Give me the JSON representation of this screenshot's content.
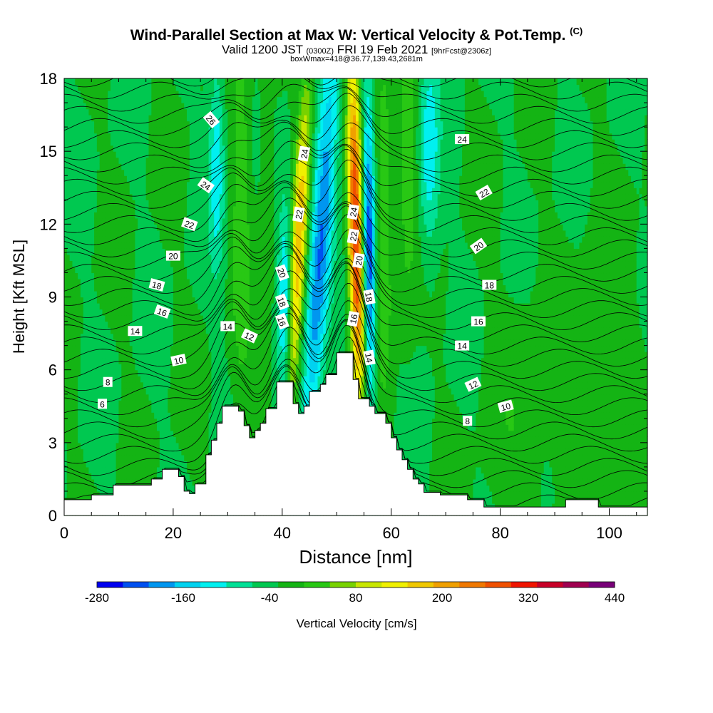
{
  "header": {
    "title": "Wind-Parallel Section at Max W: Vertical Velocity & Pot.Temp.",
    "title_mark": "(C)",
    "valid_pre": "Valid 1200 JST",
    "valid_utc": "(0300Z)",
    "valid_post": "FRI 19 Feb 2021",
    "fcst": "[9hrFcst@2306z]",
    "box": "boxWmax=418@36.77,139.43,2681m"
  },
  "chart_data": {
    "type": "heatmap",
    "xlabel": "Distance [nm]",
    "ylabel": "Height [Kft MSL]",
    "xlim": [
      0,
      107
    ],
    "ylim": [
      0,
      18
    ],
    "x_ticks": [
      0,
      20,
      40,
      60,
      80,
      100
    ],
    "y_ticks": [
      0,
      3,
      6,
      9,
      12,
      15,
      18
    ],
    "colorbar": {
      "label": "Vertical Velocity [cm/s]",
      "tick_labels": [
        "-280",
        "-160",
        "-40",
        "80",
        "200",
        "320",
        "440"
      ],
      "tick_values": [
        -280,
        -160,
        -40,
        80,
        200,
        320,
        440
      ],
      "min": -280,
      "max": 440,
      "step": 40,
      "colors": [
        "#0000f0",
        "#0050f0",
        "#0096f0",
        "#00d2f0",
        "#00f0f0",
        "#00e096",
        "#00c850",
        "#14b414",
        "#28c814",
        "#78d200",
        "#c8e600",
        "#f0f000",
        "#f0c800",
        "#f0a000",
        "#f07800",
        "#f05000",
        "#f01400",
        "#c80028",
        "#a00050",
        "#780078"
      ]
    },
    "terrain_kft": [
      [
        0,
        0.65
      ],
      [
        5,
        0.65
      ],
      [
        5,
        0.85
      ],
      [
        9,
        0.85
      ],
      [
        9,
        1.25
      ],
      [
        16,
        1.25
      ],
      [
        16,
        1.5
      ],
      [
        18,
        1.5
      ],
      [
        18,
        1.9
      ],
      [
        21,
        1.9
      ],
      [
        21,
        1.6
      ],
      [
        22,
        1.6
      ],
      [
        22,
        1.0
      ],
      [
        23,
        1.0
      ],
      [
        23,
        0.9
      ],
      [
        24,
        0.9
      ],
      [
        24,
        1.3
      ],
      [
        26,
        1.3
      ],
      [
        26,
        2.5
      ],
      [
        27,
        2.5
      ],
      [
        27,
        3.1
      ],
      [
        28,
        3.1
      ],
      [
        28,
        3.8
      ],
      [
        29,
        3.8
      ],
      [
        29,
        4.5
      ],
      [
        32,
        4.5
      ],
      [
        32,
        4.3
      ],
      [
        33,
        4.3
      ],
      [
        33,
        3.7
      ],
      [
        34,
        3.7
      ],
      [
        34,
        3.2
      ],
      [
        35,
        3.2
      ],
      [
        35,
        3.5
      ],
      [
        36,
        3.5
      ],
      [
        36,
        3.8
      ],
      [
        37,
        3.8
      ],
      [
        37,
        4.4
      ],
      [
        39,
        4.4
      ],
      [
        39,
        5.5
      ],
      [
        42,
        5.5
      ],
      [
        42,
        4.6
      ],
      [
        43,
        4.6
      ],
      [
        43,
        4.2
      ],
      [
        44,
        4.2
      ],
      [
        44,
        4.5
      ],
      [
        45,
        4.5
      ],
      [
        45,
        5.1
      ],
      [
        47,
        5.1
      ],
      [
        47,
        5.4
      ],
      [
        48,
        5.4
      ],
      [
        48,
        5.8
      ],
      [
        50,
        5.8
      ],
      [
        50,
        6.7
      ],
      [
        53,
        6.7
      ],
      [
        53,
        5.6
      ],
      [
        54,
        5.6
      ],
      [
        54,
        4.8
      ],
      [
        56,
        4.8
      ],
      [
        56,
        4.5
      ],
      [
        57,
        4.5
      ],
      [
        57,
        4.2
      ],
      [
        59,
        4.2
      ],
      [
        59,
        3.8
      ],
      [
        60,
        3.8
      ],
      [
        60,
        3.2
      ],
      [
        61,
        3.2
      ],
      [
        61,
        2.7
      ],
      [
        62,
        2.7
      ],
      [
        62,
        2.3
      ],
      [
        63,
        2.3
      ],
      [
        63,
        1.9
      ],
      [
        64,
        1.9
      ],
      [
        64,
        1.5
      ],
      [
        65,
        1.5
      ],
      [
        65,
        1.3
      ],
      [
        66,
        1.3
      ],
      [
        66,
        0.95
      ],
      [
        69,
        0.95
      ],
      [
        69,
        0.85
      ],
      [
        74,
        0.85
      ],
      [
        74,
        0.65
      ],
      [
        77,
        0.65
      ],
      [
        77,
        0.35
      ],
      [
        92,
        0.35
      ],
      [
        92,
        0.65
      ],
      [
        98,
        0.65
      ],
      [
        98,
        0.35
      ],
      [
        107,
        0.35
      ]
    ],
    "velocity_features": [
      {
        "x": 32.5,
        "y": 13.0,
        "w": 65,
        "sx": 1.2,
        "sy": 6.0,
        "tilt": 0
      },
      {
        "x": 37,
        "y": 11.5,
        "w": 30,
        "sx": 1.0,
        "sy": 6.0,
        "tilt": 0
      },
      {
        "x": 28,
        "y": 14.5,
        "w": -110,
        "sx": 1.0,
        "sy": 3.0,
        "tilt": 0
      },
      {
        "x": 40.5,
        "y": 9.0,
        "w": -130,
        "sx": 0.9,
        "sy": 3.0,
        "tilt": 0
      },
      {
        "x": 43,
        "y": 11.0,
        "w": 230,
        "sx": 1.0,
        "sy": 5.0,
        "tilt": 0.22
      },
      {
        "x": 47,
        "y": 11.0,
        "w": -200,
        "sx": 1.4,
        "sy": 6.0,
        "tilt": 0.28
      },
      {
        "x": 53.5,
        "y": 11.5,
        "w": 370,
        "sx": 0.9,
        "sy": 5.0,
        "tilt": -0.08
      },
      {
        "x": 56,
        "y": 11.0,
        "w": -240,
        "sx": 0.8,
        "sy": 4.5,
        "tilt": -0.05
      },
      {
        "x": 58.5,
        "y": 12.0,
        "w": 80,
        "sx": 1.2,
        "sy": 5.0,
        "tilt": 0
      },
      {
        "x": 63,
        "y": 14.0,
        "w": 65,
        "sx": 1.2,
        "sy": 4.0,
        "tilt": 0
      },
      {
        "x": 67,
        "y": 15.0,
        "w": -110,
        "sx": 1.3,
        "sy": 3.0,
        "tilt": 0
      },
      {
        "x": 84,
        "y": 3.5,
        "w": 30,
        "sx": 4.0,
        "sy": 3.5,
        "tilt": 0
      },
      {
        "x": 100,
        "y": 5.0,
        "w": 30,
        "sx": 5.0,
        "sy": 4.0,
        "tilt": 0
      }
    ],
    "theta_contour_labels": [
      {
        "text": "6",
        "x": 7,
        "y": 4.6,
        "angle": 0
      },
      {
        "text": "8",
        "x": 8,
        "y": 5.5,
        "angle": 0
      },
      {
        "text": "10",
        "x": 21,
        "y": 6.4,
        "angle": -12
      },
      {
        "text": "14",
        "x": 13,
        "y": 7.6,
        "angle": 0
      },
      {
        "text": "16",
        "x": 18,
        "y": 8.4,
        "angle": 20
      },
      {
        "text": "18",
        "x": 17,
        "y": 9.5,
        "angle": 15
      },
      {
        "text": "20",
        "x": 20,
        "y": 10.7,
        "angle": 0
      },
      {
        "text": "22",
        "x": 23,
        "y": 12.0,
        "angle": 20
      },
      {
        "text": "24",
        "x": 26,
        "y": 13.6,
        "angle": 35
      },
      {
        "text": "26",
        "x": 27,
        "y": 16.3,
        "angle": 50
      },
      {
        "text": "14",
        "x": 30,
        "y": 7.8,
        "angle": 0
      },
      {
        "text": "12",
        "x": 34,
        "y": 7.4,
        "angle": 25
      },
      {
        "text": "16",
        "x": 40,
        "y": 8.0,
        "angle": 70
      },
      {
        "text": "18",
        "x": 40,
        "y": 8.8,
        "angle": 70
      },
      {
        "text": "20",
        "x": 40,
        "y": 10.0,
        "angle": 70
      },
      {
        "text": "22",
        "x": 43,
        "y": 12.4,
        "angle": -80
      },
      {
        "text": "24",
        "x": 44,
        "y": 14.9,
        "angle": -80
      },
      {
        "text": "24",
        "x": 53,
        "y": 12.5,
        "angle": -80
      },
      {
        "text": "22",
        "x": 53,
        "y": 11.5,
        "angle": -80
      },
      {
        "text": "20",
        "x": 54,
        "y": 10.5,
        "angle": -80
      },
      {
        "text": "16",
        "x": 53,
        "y": 8.1,
        "angle": -80
      },
      {
        "text": "18",
        "x": 56,
        "y": 9.0,
        "angle": 80
      },
      {
        "text": "14",
        "x": 56,
        "y": 6.5,
        "angle": 80
      },
      {
        "text": "24",
        "x": 73,
        "y": 15.5,
        "angle": 0
      },
      {
        "text": "22",
        "x": 77,
        "y": 13.3,
        "angle": -30
      },
      {
        "text": "20",
        "x": 76,
        "y": 11.1,
        "angle": -35
      },
      {
        "text": "18",
        "x": 78,
        "y": 9.5,
        "angle": 0
      },
      {
        "text": "16",
        "x": 76,
        "y": 8.0,
        "angle": 0
      },
      {
        "text": "14",
        "x": 73,
        "y": 7.0,
        "angle": 0
      },
      {
        "text": "12",
        "x": 75,
        "y": 5.4,
        "angle": -25
      },
      {
        "text": "10",
        "x": 81,
        "y": 4.5,
        "angle": -15
      },
      {
        "text": "8",
        "x": 74,
        "y": 3.9,
        "angle": 0
      }
    ]
  }
}
